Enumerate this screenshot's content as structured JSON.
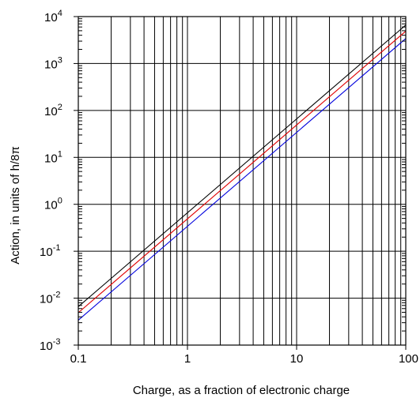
{
  "chart_data": {
    "type": "line",
    "xlabel": "Charge, as a fraction of electronic charge",
    "ylabel": "Action, in units of h/8π",
    "x_scale": "log",
    "y_scale": "log",
    "xlim": [
      0.1,
      100
    ],
    "ylim": [
      0.001,
      10000
    ],
    "grid": true,
    "x_ticks": [
      {
        "value": 0.1,
        "label": "0.1"
      },
      {
        "value": 1,
        "label": "1"
      },
      {
        "value": 10,
        "label": "10"
      },
      {
        "value": 100,
        "label": "100"
      }
    ],
    "y_ticks": [
      {
        "value": 0.001,
        "base": "10",
        "exp": "-3"
      },
      {
        "value": 0.01,
        "base": "10",
        "exp": "-2"
      },
      {
        "value": 0.1,
        "base": "10",
        "exp": "-1"
      },
      {
        "value": 1,
        "base": "10",
        "exp": "0"
      },
      {
        "value": 10,
        "base": "10",
        "exp": "1"
      },
      {
        "value": 100,
        "base": "10",
        "exp": "2"
      },
      {
        "value": 1000,
        "base": "10",
        "exp": "3"
      },
      {
        "value": 10000,
        "base": "10",
        "exp": "4"
      }
    ],
    "series": [
      {
        "color": "#000000",
        "x": [
          0.1,
          100
        ],
        "y": [
          0.0066,
          6600
        ]
      },
      {
        "color": "#e00000",
        "x": [
          0.1,
          100
        ],
        "y": [
          0.0049,
          4900
        ]
      },
      {
        "color": "#0000dd",
        "x": [
          0.1,
          100
        ],
        "y": [
          0.0034,
          3400
        ]
      }
    ]
  }
}
